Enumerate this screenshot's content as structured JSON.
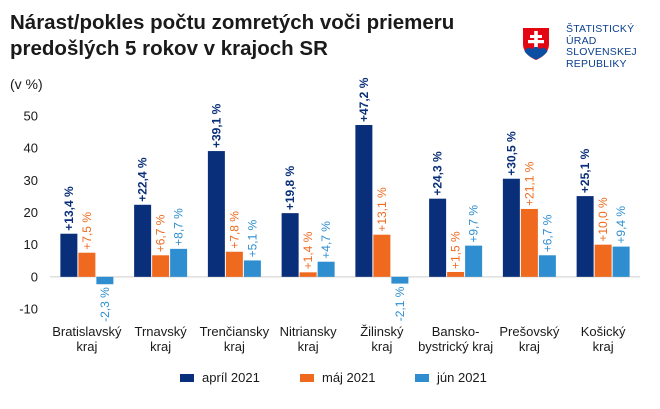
{
  "header": {
    "title_line1": "Nárast/pokles počtu zomretých voči priemeru",
    "title_line2": "predošlých 5 rokov v krajoch SR",
    "subtitle": "(v %)"
  },
  "logo": {
    "lines": [
      "ŠTATISTICKÝ",
      "ÚRAD",
      "SLOVENSKEJ",
      "REPUBLIKY"
    ],
    "text_color": "#0b3f8f",
    "emblem_red": "#e30613",
    "emblem_blue": "#0b4ea2"
  },
  "chart_data": {
    "type": "bar",
    "categories": [
      [
        "Bratislavský",
        "kraj"
      ],
      [
        "Trnavský",
        "kraj"
      ],
      [
        "Trenčiansky",
        "kraj"
      ],
      [
        "Nitriansky",
        "kraj"
      ],
      [
        "Žilinský",
        "kraj"
      ],
      [
        "Bansko-",
        "bystrický kraj"
      ],
      [
        "Prešovský",
        "kraj"
      ],
      [
        "Košický",
        "kraj"
      ]
    ],
    "series": [
      {
        "name": "apríl 2021",
        "color": "#0a2f7a",
        "values": [
          13.4,
          22.4,
          39.1,
          19.8,
          47.2,
          24.3,
          30.5,
          25.1
        ],
        "labels": [
          "+13,4 %",
          "+22,4 %",
          "+39,1 %",
          "+19,8 %",
          "+47,2 %",
          "+24,3 %",
          "+30,5 %",
          "+25,1 %"
        ]
      },
      {
        "name": "máj 2021",
        "color": "#ef6a1f",
        "values": [
          7.5,
          6.7,
          7.8,
          1.4,
          13.1,
          1.5,
          21.1,
          10.0
        ],
        "labels": [
          "+7,5 %",
          "+6,7 %",
          "+7,8 %",
          "+1,4 %",
          "+13,1 %",
          "+1,5 %",
          "+21,1 %",
          "+10,0 %"
        ]
      },
      {
        "name": "jún 2021",
        "color": "#2e8ed0",
        "values": [
          -2.3,
          8.7,
          5.1,
          4.7,
          -2.1,
          9.7,
          6.7,
          9.4
        ],
        "labels": [
          "-2,3 %",
          "+8,7 %",
          "+5,1 %",
          "+4,7 %",
          "-2,1 %",
          "+9,7 %",
          "+6,7 %",
          "+9,4 %"
        ]
      }
    ],
    "y_ticks": [
      "-10",
      "0",
      "10",
      "20",
      "30",
      "40",
      "50"
    ],
    "ylim": [
      -10,
      50
    ],
    "legend_position": "bottom",
    "grid": false
  }
}
